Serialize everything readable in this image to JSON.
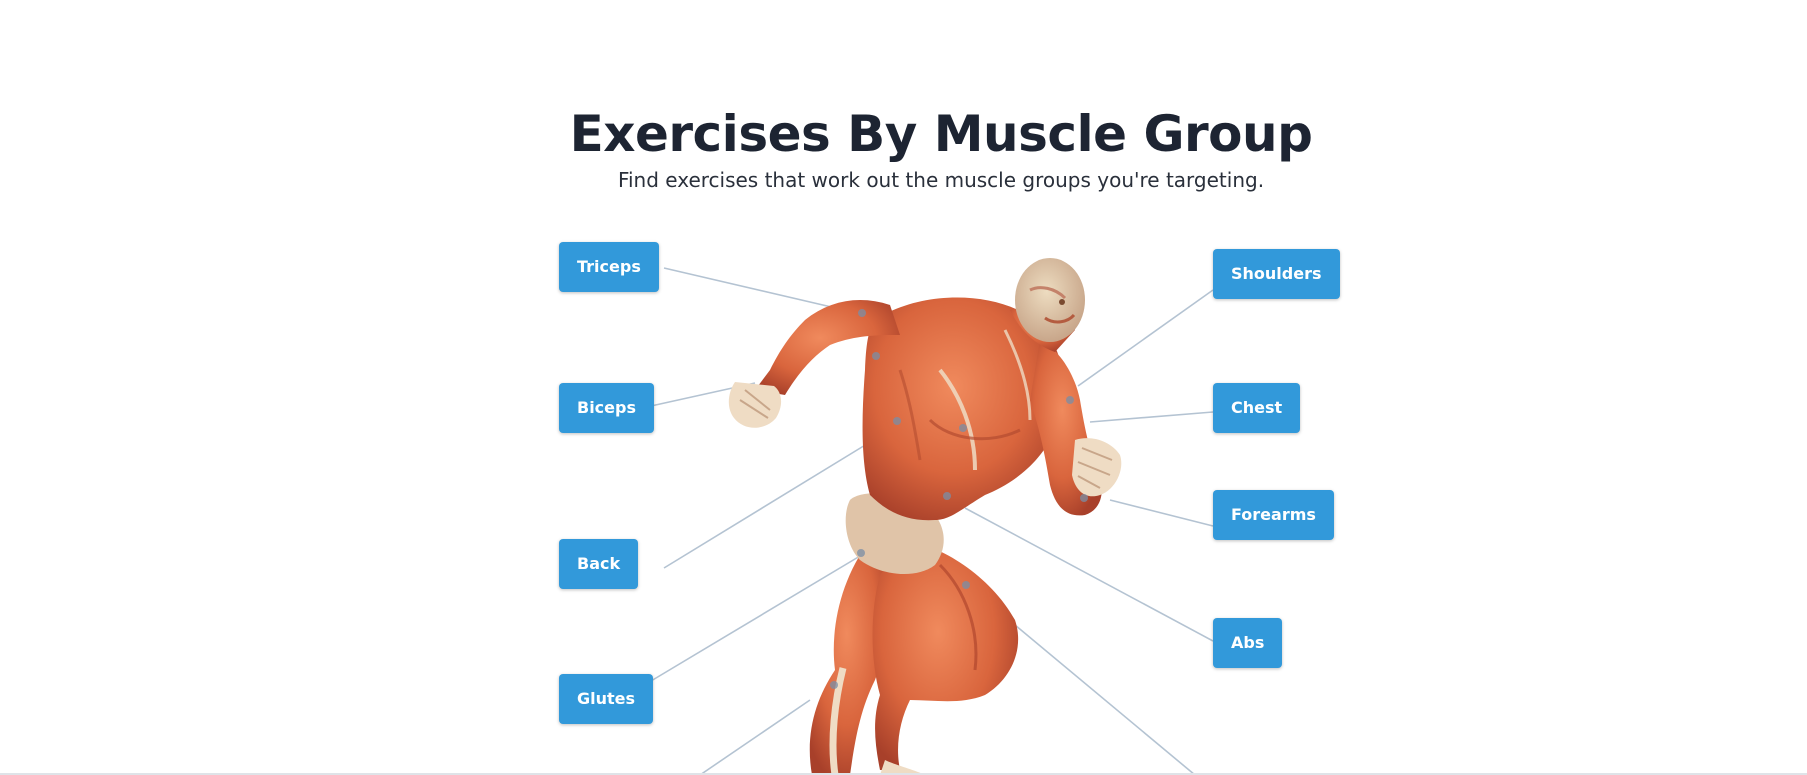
{
  "header": {
    "title": "Exercises By Muscle Group",
    "subtitle": "Find exercises that work out the muscle groups you're targeting."
  },
  "muscle_groups": [
    {
      "label": "Triceps"
    },
    {
      "label": "Biceps"
    },
    {
      "label": "Back"
    },
    {
      "label": "Glutes"
    },
    {
      "label": "Shoulders"
    },
    {
      "label": "Chest"
    },
    {
      "label": "Forearms"
    },
    {
      "label": "Abs"
    }
  ],
  "colors": {
    "button": "#3299da",
    "title": "#1d2432",
    "muscle": "#d9653d",
    "tendon": "#efdcc4",
    "leader_line": "#b4c3d2"
  },
  "illustration": "anatomical-muscle-figure-running"
}
